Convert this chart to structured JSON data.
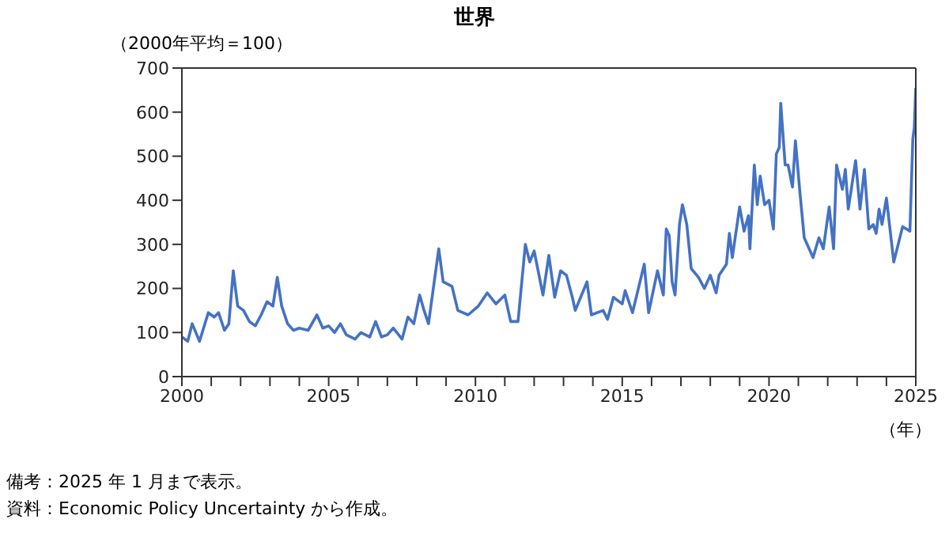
{
  "chart_data": {
    "type": "line",
    "title": "世界",
    "ylabel": "（2000年平均＝100）",
    "xlabel": "（年）",
    "annotations": [
      "備考：2025 年 1 月まで表示。",
      "資料：Economic Policy Uncertainty から作成。"
    ],
    "x": [
      2000.0,
      2000.2,
      2000.35,
      2000.6,
      2000.9,
      2001.1,
      2001.25,
      2001.45,
      2001.6,
      2001.75,
      2001.9,
      2002.1,
      2002.3,
      2002.5,
      2002.7,
      2002.9,
      2003.1,
      2003.25,
      2003.4,
      2003.6,
      2003.8,
      2004.0,
      2004.3,
      2004.6,
      2004.8,
      2005.0,
      2005.2,
      2005.4,
      2005.6,
      2005.9,
      2006.1,
      2006.4,
      2006.6,
      2006.8,
      2007.0,
      2007.2,
      2007.5,
      2007.7,
      2007.9,
      2008.1,
      2008.25,
      2008.4,
      2008.75,
      2008.9,
      2009.2,
      2009.4,
      2009.75,
      2010.1,
      2010.4,
      2010.7,
      2011.0,
      2011.2,
      2011.45,
      2011.7,
      2011.85,
      2012.0,
      2012.3,
      2012.5,
      2012.7,
      2012.9,
      2013.1,
      2013.3,
      2013.4,
      2013.8,
      2013.95,
      2014.35,
      2014.5,
      2014.7,
      2015.0,
      2015.1,
      2015.35,
      2015.75,
      2015.9,
      2016.2,
      2016.4,
      2016.5,
      2016.6,
      2016.7,
      2016.8,
      2016.95,
      2017.05,
      2017.2,
      2017.35,
      2017.6,
      2017.8,
      2018.0,
      2018.2,
      2018.3,
      2018.55,
      2018.65,
      2018.75,
      2019.0,
      2019.15,
      2019.3,
      2019.35,
      2019.5,
      2019.6,
      2019.7,
      2019.85,
      2020.0,
      2020.15,
      2020.25,
      2020.35,
      2020.4,
      2020.55,
      2020.65,
      2020.8,
      2020.9,
      2021.05,
      2021.2,
      2021.5,
      2021.7,
      2021.85,
      2022.05,
      2022.2,
      2022.3,
      2022.5,
      2022.6,
      2022.7,
      2022.95,
      2023.1,
      2023.25,
      2023.4,
      2023.55,
      2023.65,
      2023.75,
      2023.85,
      2024.0,
      2024.25,
      2024.55,
      2024.8,
      2024.9,
      2024.95,
      2025.0
    ],
    "series": [
      {
        "color": "#4472c4",
        "values": [
          90,
          80,
          120,
          80,
          145,
          135,
          145,
          105,
          120,
          240,
          160,
          150,
          125,
          115,
          140,
          170,
          160,
          225,
          160,
          120,
          105,
          110,
          105,
          140,
          110,
          115,
          100,
          120,
          95,
          85,
          100,
          90,
          125,
          90,
          95,
          110,
          85,
          135,
          120,
          185,
          150,
          120,
          290,
          215,
          205,
          150,
          140,
          160,
          190,
          165,
          185,
          125,
          125,
          300,
          260,
          285,
          185,
          275,
          180,
          240,
          230,
          180,
          150,
          215,
          140,
          150,
          130,
          180,
          165,
          195,
          145,
          255,
          145,
          240,
          185,
          335,
          320,
          215,
          185,
          345,
          390,
          345,
          245,
          225,
          200,
          230,
          190,
          230,
          255,
          325,
          270,
          385,
          330,
          365,
          290,
          480,
          390,
          455,
          390,
          400,
          335,
          505,
          520,
          620,
          480,
          480,
          430,
          535,
          420,
          315,
          270,
          315,
          290,
          385,
          290,
          480,
          425,
          470,
          380,
          490,
          380,
          470,
          335,
          345,
          325,
          380,
          345,
          405,
          260,
          340,
          330,
          540,
          565,
          655
        ]
      }
    ],
    "xlim": [
      2000,
      2025
    ],
    "xticks": [
      2000,
      {
        "value": 2001,
        "label": null
      },
      {
        "value": 2002,
        "label": null
      },
      {
        "value": 2003,
        "label": null
      },
      {
        "value": 2004,
        "label": null
      },
      2005,
      {
        "value": 2006,
        "label": null
      },
      {
        "value": 2007,
        "label": null
      },
      {
        "value": 2008,
        "label": null
      },
      {
        "value": 2009,
        "label": null
      },
      2010,
      {
        "value": 2011,
        "label": null
      },
      {
        "value": 2012,
        "label": null
      },
      {
        "value": 2013,
        "label": null
      },
      {
        "value": 2014,
        "label": null
      },
      2015,
      {
        "value": 2016,
        "label": null
      },
      {
        "value": 2017,
        "label": null
      },
      {
        "value": 2018,
        "label": null
      },
      {
        "value": 2019,
        "label": null
      },
      2020,
      {
        "value": 2021,
        "label": null
      },
      {
        "value": 2022,
        "label": null
      },
      {
        "value": 2023,
        "label": null
      },
      {
        "value": 2024,
        "label": null
      },
      2025
    ],
    "ylim": [
      0,
      700
    ],
    "yticks": [
      0,
      100,
      200,
      300,
      400,
      500,
      600,
      700
    ],
    "marker": "none",
    "line_style": "solid"
  }
}
